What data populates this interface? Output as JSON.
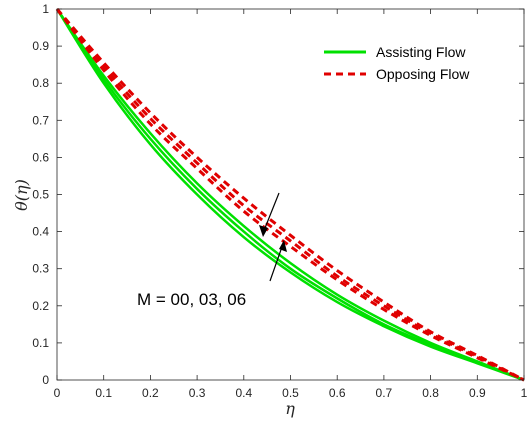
{
  "chart_data": {
    "type": "line",
    "title": "",
    "xlabel": "η",
    "ylabel": "θ(η)",
    "xlim": [
      0,
      1
    ],
    "ylim": [
      0,
      1
    ],
    "xticks": [
      "0",
      "0.1",
      "0.2",
      "0.3",
      "0.4",
      "0.5",
      "0.6",
      "0.7",
      "0.8",
      "0.9",
      "1"
    ],
    "yticks": [
      "0",
      "0.1",
      "0.2",
      "0.3",
      "0.4",
      "0.5",
      "0.6",
      "0.7",
      "0.8",
      "0.9",
      "1"
    ],
    "grid": false,
    "legend_position": "top-right",
    "x": [
      0,
      0.1,
      0.2,
      0.3,
      0.4,
      0.5,
      0.6,
      0.7,
      0.8,
      0.9,
      1
    ],
    "series": [
      {
        "name": "Assisting Flow",
        "style": "solid",
        "color": "#00e000",
        "values": [
          1,
          0.8,
          0.635,
          0.5,
          0.385,
          0.29,
          0.21,
          0.145,
          0.09,
          0.045,
          0
        ]
      },
      {
        "style": "solid",
        "color": "#00e000",
        "values": [
          1,
          0.81,
          0.65,
          0.515,
          0.4,
          0.3,
          0.22,
          0.15,
          0.095,
          0.048,
          0
        ]
      },
      {
        "style": "solid",
        "color": "#00e000",
        "values": [
          1,
          0.82,
          0.665,
          0.53,
          0.415,
          0.315,
          0.23,
          0.16,
          0.1,
          0.05,
          0
        ]
      },
      {
        "name": "Opposing Flow",
        "style": "dashed",
        "color": "#e00000",
        "values": [
          1,
          0.835,
          0.69,
          0.57,
          0.455,
          0.36,
          0.27,
          0.19,
          0.12,
          0.06,
          0
        ]
      },
      {
        "style": "dashed",
        "color": "#e00000",
        "values": [
          1,
          0.845,
          0.705,
          0.585,
          0.47,
          0.375,
          0.28,
          0.2,
          0.125,
          0.063,
          0
        ]
      },
      {
        "style": "dashed",
        "color": "#e00000",
        "values": [
          1,
          0.855,
          0.72,
          0.6,
          0.49,
          0.39,
          0.295,
          0.21,
          0.13,
          0.066,
          0
        ]
      }
    ],
    "annotation": {
      "text": "M = 00, 03, 06"
    }
  }
}
